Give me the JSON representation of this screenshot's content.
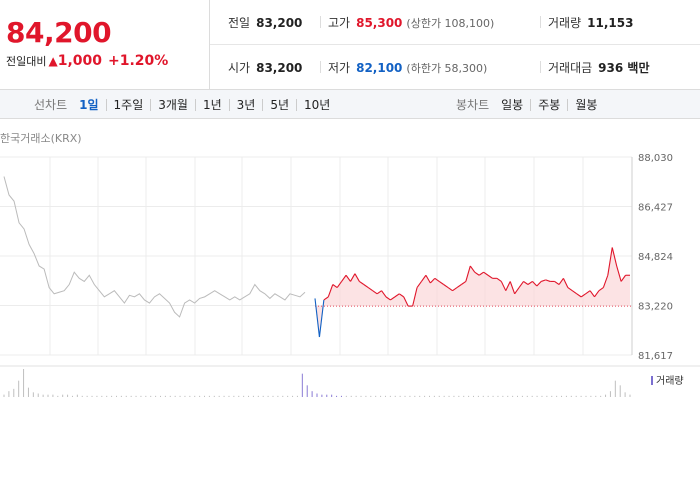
{
  "summary": {
    "price": "84,200",
    "change_label": "전일대비",
    "change_arrow": "▲",
    "change_value": "1,000",
    "change_percent": "+1.20%"
  },
  "stats": {
    "prev_close_label": "전일",
    "prev_close": "83,200",
    "high_label": "고가",
    "high": "85,300",
    "upper_limit": "(상한가 108,100)",
    "volume_label": "거래량",
    "volume": "11,153",
    "open_label": "시가",
    "open": "83,200",
    "low_label": "저가",
    "low": "82,100",
    "lower_limit": "(하한가 58,300)",
    "trade_value_label": "거래대금",
    "trade_value": "936 백만"
  },
  "period_bar": {
    "line_title": "선차트",
    "line_options": [
      "1일",
      "1주일",
      "3개월",
      "1년",
      "3년",
      "5년",
      "10년"
    ],
    "line_selected": 0,
    "candle_title": "봉차트",
    "candle_options": [
      "일봉",
      "주봉",
      "월봉"
    ]
  },
  "chart": {
    "source_label": "한국거래소(KRX)",
    "volume_legend": "거래량",
    "colors": {
      "up": "#e0162b",
      "down": "#1261c4",
      "prev_day": "#bbbbbb",
      "fill": "#fbd7d9",
      "volume": "#7b6fd0"
    }
  },
  "chart_data": {
    "type": "line",
    "title": "",
    "ylim": [
      81617,
      88030
    ],
    "y_ticks": [
      "88,030",
      "86,427",
      "84,824",
      "83,220",
      "81,617"
    ],
    "baseline": 83200,
    "series": [
      {
        "values": [
          87400,
          86800,
          86600,
          85900,
          85700,
          85200,
          84900,
          84500,
          84400,
          83800,
          83600,
          83650,
          83700,
          83900,
          84300,
          84100,
          84000,
          84200,
          83900,
          83700,
          83500,
          83600,
          83700,
          83500,
          83300,
          83550,
          83500,
          83600,
          83400,
          83300,
          83500,
          83600,
          83450,
          83300,
          83000,
          82850,
          83300,
          83400,
          83300,
          83450,
          83500,
          83600,
          83700,
          83600,
          83500,
          83400,
          83500,
          83400,
          83500,
          83600,
          83900,
          83700,
          83600,
          83450,
          83600,
          83500,
          83400,
          83600,
          83550,
          83500,
          83650
        ]
      },
      {
        "values": [
          83450,
          82200,
          83400,
          83500,
          83900,
          83800,
          84000,
          84200,
          84000,
          84250,
          84000,
          83900,
          83800,
          83700,
          83600,
          83700,
          83500,
          83400,
          83500,
          83600,
          83500,
          83200,
          83200,
          83800,
          84000,
          84200,
          83950,
          84100,
          84000,
          83900,
          83800,
          83700,
          83800,
          83900,
          84000,
          84500,
          84300,
          84200,
          84300,
          84200,
          84100,
          84100,
          84000,
          83700,
          84000,
          83600,
          83800,
          84000,
          83900,
          84000,
          83850,
          84000,
          84050,
          84000,
          84000,
          83900,
          84100,
          83800,
          83700,
          83600,
          83500,
          83600,
          83700,
          83500,
          83700,
          83800,
          84200,
          85100,
          84500,
          84000,
          84200,
          84200
        ]
      }
    ],
    "volume": [
      2,
      5,
      7,
      14,
      24,
      8,
      4,
      3,
      2,
      2,
      2,
      1,
      2,
      2,
      1,
      2,
      1,
      1,
      1,
      1,
      1,
      1,
      1,
      1,
      1,
      1,
      1,
      1,
      1,
      1,
      1,
      1,
      1,
      1,
      1,
      1,
      1,
      1,
      1,
      1,
      1,
      1,
      1,
      1,
      1,
      1,
      1,
      1,
      1,
      1,
      1,
      1,
      1,
      1,
      1,
      1,
      1,
      1,
      1,
      1,
      1,
      20,
      10,
      5,
      3,
      2,
      2,
      2,
      1,
      1,
      1,
      1,
      1,
      1,
      1,
      1,
      1,
      1,
      1,
      1,
      1,
      1,
      1,
      1,
      1,
      1,
      1,
      1,
      1,
      1,
      1,
      1,
      1,
      1,
      1,
      1,
      1,
      1,
      1,
      1,
      1,
      1,
      1,
      1,
      1,
      1,
      1,
      1,
      1,
      1,
      1,
      1,
      1,
      1,
      1,
      1,
      1,
      1,
      1,
      1,
      1,
      1,
      1,
      2,
      5,
      14,
      10,
      4,
      2
    ]
  }
}
